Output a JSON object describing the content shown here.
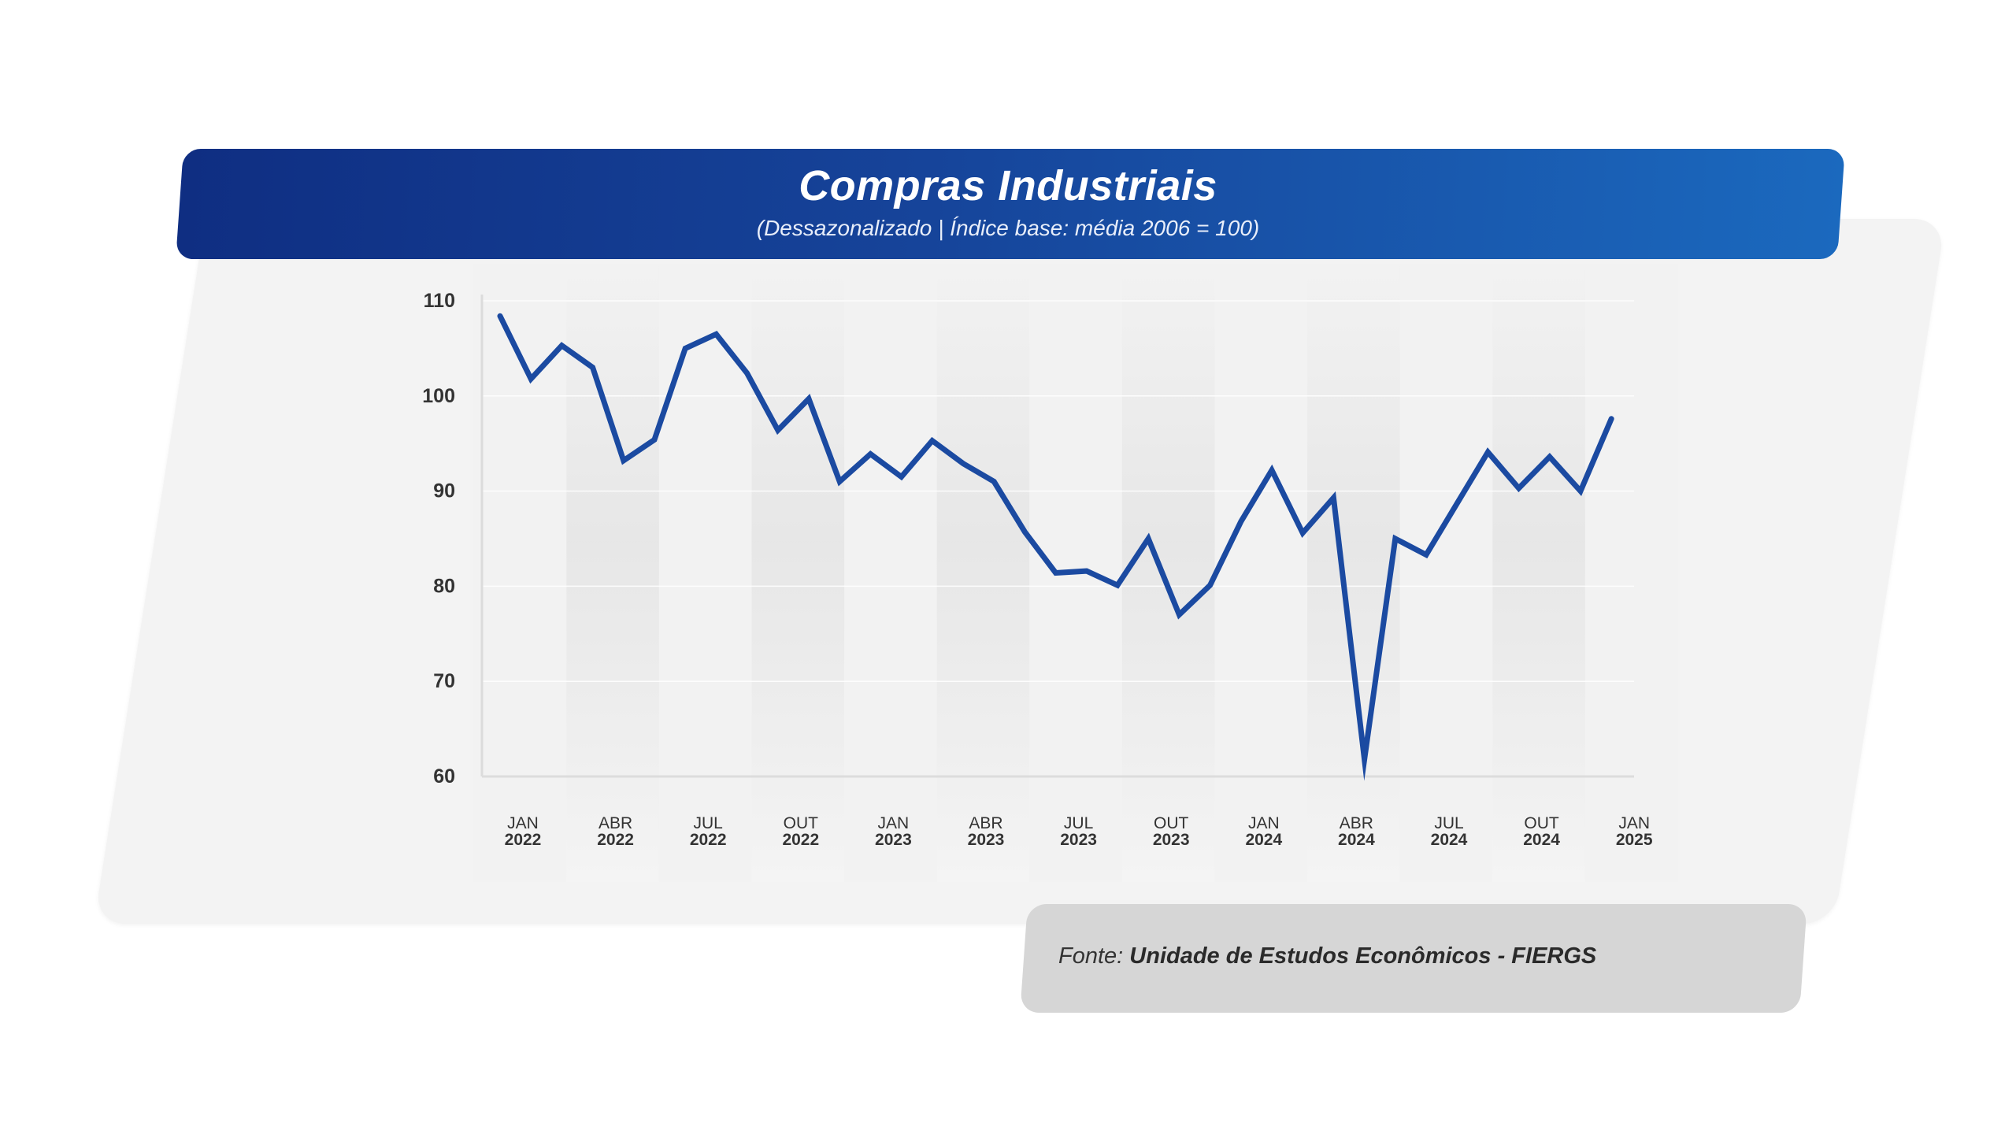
{
  "header": {
    "title": "Compras Industriais",
    "subtitle": "(Dessazonalizado | Índice base: média 2006 = 100)"
  },
  "source": {
    "prefix": "Fonte: ",
    "name": "Unidade de Estudos Econômicos - FIERGS"
  },
  "colors": {
    "line": "#1b4aa1",
    "header_start": "#0f2e82",
    "header_end": "#1b69be"
  },
  "chart_data": {
    "type": "line",
    "title": "Compras Industriais",
    "subtitle": "(Dessazonalizado | Índice base: média 2006 = 100)",
    "ylim": [
      60,
      110
    ],
    "yticks": [
      60,
      70,
      80,
      90,
      100,
      110
    ],
    "grid": true,
    "x_tick_labels": [
      {
        "month": "JAN",
        "year": "2022"
      },
      {
        "month": "ABR",
        "year": "2022"
      },
      {
        "month": "JUL",
        "year": "2022"
      },
      {
        "month": "OUT",
        "year": "2022"
      },
      {
        "month": "JAN",
        "year": "2023"
      },
      {
        "month": "ABR",
        "year": "2023"
      },
      {
        "month": "JUL",
        "year": "2023"
      },
      {
        "month": "OUT",
        "year": "2023"
      },
      {
        "month": "JAN",
        "year": "2024"
      },
      {
        "month": "ABR",
        "year": "2024"
      },
      {
        "month": "JUL",
        "year": "2024"
      },
      {
        "month": "OUT",
        "year": "2024"
      },
      {
        "month": "JAN",
        "year": "2025"
      }
    ],
    "x_start": "2022-01",
    "series": [
      {
        "values": [
          108.4,
          101.8,
          105.3,
          103.0,
          93.2,
          95.4,
          105.0,
          106.5,
          102.4,
          96.4,
          99.7,
          91.0,
          93.9,
          91.5,
          95.3,
          92.9,
          91.0,
          85.7,
          81.4,
          81.6,
          80.1,
          85.0,
          77.0,
          80.1,
          86.8,
          92.2,
          85.6,
          89.3,
          61.8,
          85.0,
          83.3,
          88.7,
          94.1,
          90.3,
          93.6,
          90.0,
          97.6
        ]
      }
    ]
  }
}
